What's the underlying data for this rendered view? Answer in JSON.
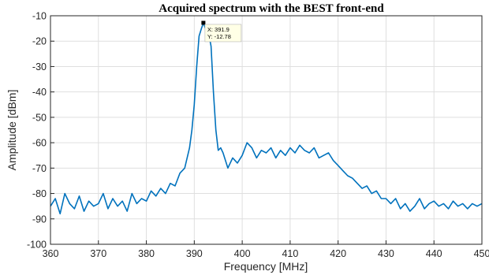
{
  "chart_data": {
    "type": "line",
    "title": "Acquired spectrum with the BEST front-end",
    "xlabel": "Frequency [MHz]",
    "ylabel": "Amplitude [dBm]",
    "xlim": [
      360,
      450
    ],
    "ylim": [
      -100,
      -10
    ],
    "xticks": [
      360,
      370,
      380,
      390,
      400,
      410,
      420,
      430,
      440,
      450
    ],
    "yticks": [
      -10,
      -20,
      -30,
      -40,
      -50,
      -60,
      -70,
      -80,
      -90,
      -100
    ],
    "xtick_labels": [
      "360",
      "370",
      "380",
      "390",
      "400",
      "410",
      "420",
      "430",
      "440",
      "450"
    ],
    "ytick_labels": [
      "-10",
      "-20",
      "-30",
      "-40",
      "-50",
      "-60",
      "-70",
      "-80",
      "-90",
      "-100"
    ],
    "grid": true,
    "series": [
      {
        "color": "#0072BD",
        "x": [
          360,
          361,
          362,
          363,
          364,
          365,
          366,
          367,
          368,
          369,
          370,
          371,
          372,
          373,
          374,
          375,
          376,
          377,
          378,
          379,
          380,
          381,
          382,
          383,
          384,
          385,
          386,
          387,
          388,
          389,
          389.5,
          390,
          390.5,
          391,
          391.5,
          391.9,
          392.5,
          393,
          393.5,
          394,
          394.5,
          395,
          395.5,
          396,
          397,
          398,
          399,
          400,
          401,
          402,
          403,
          404,
          405,
          406,
          407,
          408,
          409,
          410,
          411,
          412,
          413,
          414,
          415,
          416,
          417,
          418,
          419,
          420,
          421,
          422,
          423,
          424,
          425,
          426,
          427,
          428,
          429,
          430,
          431,
          432,
          433,
          434,
          435,
          436,
          437,
          438,
          439,
          440,
          441,
          442,
          443,
          444,
          445,
          446,
          447,
          448,
          449,
          450
        ],
        "y": [
          -85,
          -82,
          -88,
          -80,
          -84,
          -86,
          -81,
          -87,
          -83,
          -85,
          -84,
          -80,
          -86,
          -82,
          -85,
          -83,
          -87,
          -80,
          -84,
          -82,
          -83,
          -79,
          -81,
          -78,
          -80,
          -76,
          -77,
          -72,
          -70,
          -62,
          -55,
          -45,
          -30,
          -18,
          -15,
          -12.78,
          -16,
          -17,
          -22,
          -40,
          -55,
          -63,
          -62,
          -64,
          -70,
          -66,
          -68,
          -65,
          -60,
          -62,
          -66,
          -63,
          -64,
          -62,
          -66,
          -63,
          -65,
          -62,
          -64,
          -61,
          -63,
          -64,
          -62,
          -66,
          -65,
          -64,
          -67,
          -69,
          -71,
          -73,
          -74,
          -76,
          -78,
          -77,
          -80,
          -79,
          -82,
          -82,
          -84,
          -82,
          -86,
          -84,
          -87,
          -85,
          -82,
          -86,
          -84,
          -83,
          -85,
          -84,
          -86,
          -83,
          -85,
          -84,
          -86,
          -84,
          -85,
          -84
        ]
      }
    ],
    "datatip": {
      "x_label": "X: 391.9",
      "y_label": "Y: -12.78",
      "x": 391.9,
      "y": -12.78
    }
  }
}
